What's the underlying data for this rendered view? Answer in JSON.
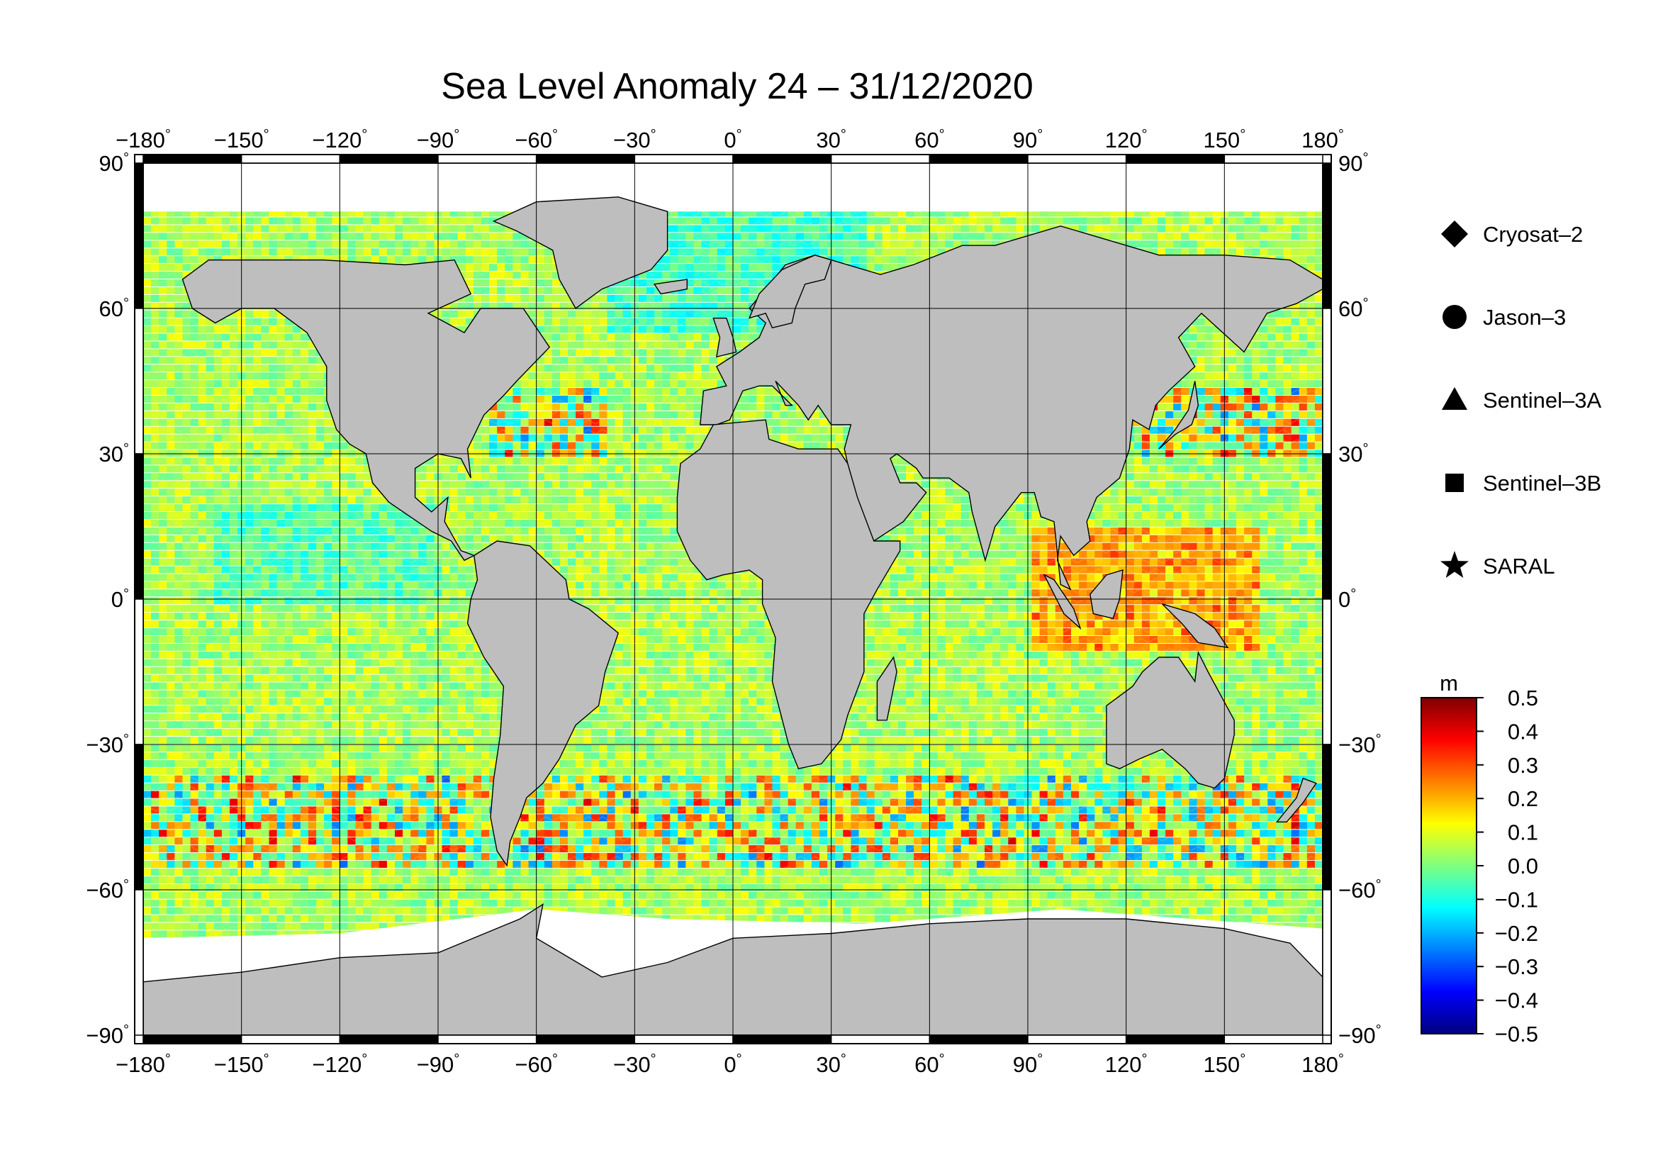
{
  "title": "Sea Level Anomaly 24 – 31/12/2020",
  "map": {
    "lon_ticks": [
      "−180",
      "−150",
      "−120",
      "−90",
      "−60",
      "−30",
      "0",
      "30",
      "60",
      "90",
      "120",
      "150",
      "180"
    ],
    "lat_ticks": [
      "90",
      "60",
      "30",
      "0",
      "−30",
      "−60",
      "−90"
    ],
    "degree_symbol": "°",
    "lon_range": [
      -180,
      180
    ],
    "lat_range": [
      -90,
      90
    ],
    "land_color": "#bebebe",
    "ice_color": "#ffffff"
  },
  "legend": {
    "items": [
      {
        "label": "Cryosat–2",
        "symbol": "diamond"
      },
      {
        "label": "Jason–3",
        "symbol": "circle"
      },
      {
        "label": "Sentinel–3A",
        "symbol": "triangle"
      },
      {
        "label": "Sentinel–3B",
        "symbol": "square"
      },
      {
        "label": "SARAL",
        "symbol": "star"
      }
    ]
  },
  "colorbar": {
    "unit": "m",
    "ticks": [
      "0.5",
      "0.4",
      "0.3",
      "0.2",
      "0.1",
      "0.0",
      "−0.1",
      "−0.2",
      "−0.3",
      "−0.4",
      "−0.5"
    ],
    "range": [
      -0.5,
      0.5
    ],
    "colors": [
      "#00007f",
      "#0000ff",
      "#007fff",
      "#00ffff",
      "#7fff7f",
      "#ffff00",
      "#ff7f00",
      "#ff0000",
      "#7f0000"
    ]
  }
}
